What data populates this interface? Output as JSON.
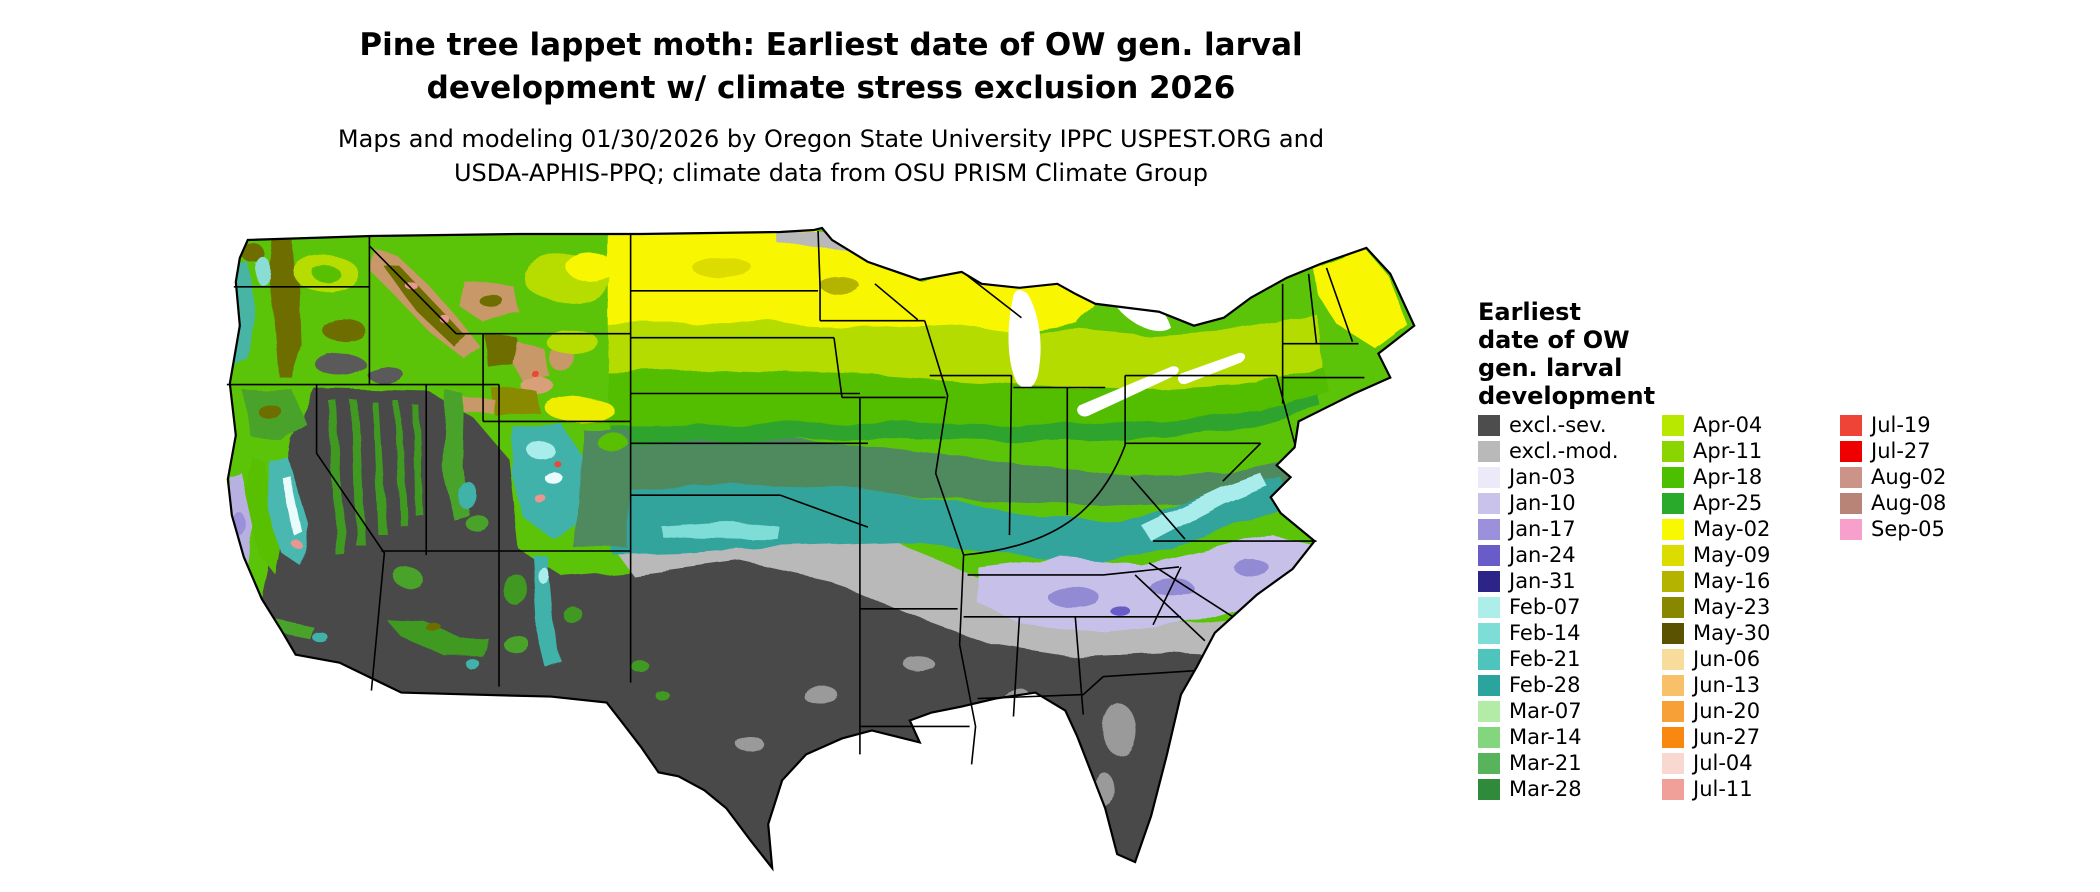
{
  "title": {
    "line1": "Pine tree lappet moth: Earliest date of OW gen. larval",
    "line2": "development w/ climate stress exclusion 2026"
  },
  "subtitle": {
    "line1": "Maps and modeling 01/30/2026 by Oregon State University IPPC USPEST.ORG and",
    "line2": "USDA-APHIS-PPQ; climate data from OSU PRISM Climate Group"
  },
  "legend": {
    "title_lines": [
      "Earliest",
      "date of OW",
      "gen. larval",
      "development"
    ],
    "columns": [
      {
        "entries": [
          {
            "label": "excl.-sev.",
            "color": "#4d4d4d"
          },
          {
            "label": "excl.-mod.",
            "color": "#b9b9b9"
          },
          {
            "label": "Jan-03",
            "color": "#ece9f9"
          },
          {
            "label": "Jan-10",
            "color": "#c9c3ec"
          },
          {
            "label": "Jan-17",
            "color": "#9b90da"
          },
          {
            "label": "Jan-24",
            "color": "#6a5cc8"
          },
          {
            "label": "Jan-31",
            "color": "#2d2488"
          },
          {
            "label": "Feb-07",
            "color": "#aeeeea"
          },
          {
            "label": "Feb-14",
            "color": "#7eddd6"
          },
          {
            "label": "Feb-21",
            "color": "#4fc4bc"
          },
          {
            "label": "Feb-28",
            "color": "#2aa49c"
          },
          {
            "label": "Mar-07",
            "color": "#b2eca6"
          },
          {
            "label": "Mar-14",
            "color": "#84d67e"
          },
          {
            "label": "Mar-21",
            "color": "#57b45c"
          },
          {
            "label": "Mar-28",
            "color": "#2f8a3c"
          }
        ]
      },
      {
        "entries": [
          {
            "label": "Apr-04",
            "color": "#b8e800"
          },
          {
            "label": "Apr-11",
            "color": "#8ad400"
          },
          {
            "label": "Apr-18",
            "color": "#4cc000"
          },
          {
            "label": "Apr-25",
            "color": "#2aaa2a"
          },
          {
            "label": "May-02",
            "color": "#f8f800"
          },
          {
            "label": "May-09",
            "color": "#dcdc00"
          },
          {
            "label": "May-16",
            "color": "#b4b400"
          },
          {
            "label": "May-23",
            "color": "#888800"
          },
          {
            "label": "May-30",
            "color": "#5a5200"
          },
          {
            "label": "Jun-06",
            "color": "#f8dc9c"
          },
          {
            "label": "Jun-13",
            "color": "#f8c068"
          },
          {
            "label": "Jun-20",
            "color": "#f8a038"
          },
          {
            "label": "Jun-27",
            "color": "#f88810"
          },
          {
            "label": "Jul-04",
            "color": "#f8d8d0"
          },
          {
            "label": "Jul-11",
            "color": "#f0a098"
          }
        ]
      },
      {
        "entries": [
          {
            "label": "Jul-19",
            "color": "#ee4438"
          },
          {
            "label": "Jul-27",
            "color": "#ee0000"
          },
          {
            "label": "Aug-02",
            "color": "#cc9488"
          },
          {
            "label": "Aug-08",
            "color": "#b88478"
          },
          {
            "label": "Sep-05",
            "color": "#f8a0cc"
          }
        ]
      }
    ]
  }
}
